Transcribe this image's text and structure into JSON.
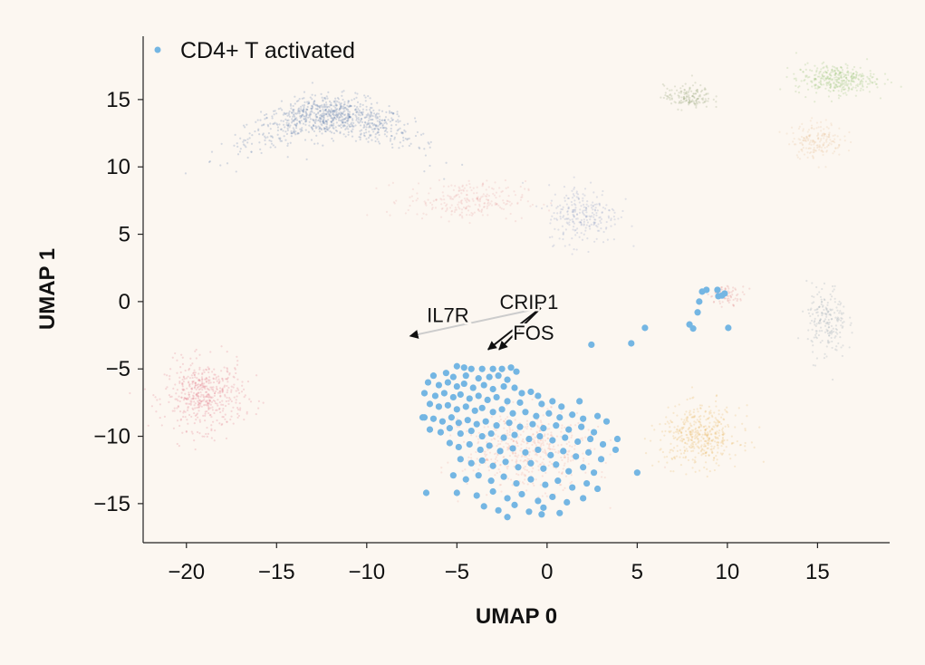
{
  "chart_data": {
    "type": "scatter",
    "title": "",
    "xlabel": "UMAP 0",
    "ylabel": "UMAP 1",
    "xlim": [
      -22.4,
      19.0
    ],
    "ylim": [
      -17.9,
      19.7
    ],
    "xticks": [
      -20,
      -15,
      -10,
      -5,
      0,
      5,
      10,
      15
    ],
    "yticks": [
      -15,
      -10,
      -5,
      0,
      5,
      10,
      15
    ],
    "xtick_labels": [
      "−20",
      "−15",
      "−10",
      "−5",
      "0",
      "5",
      "10",
      "15"
    ],
    "ytick_labels": [
      "−15",
      "−10",
      "−5",
      "0",
      "5",
      "10",
      "15"
    ],
    "grid": false,
    "legend": {
      "placement": "top-left",
      "entries": [
        "CD4+ T activated"
      ]
    },
    "highlight_color": "#74b6e3",
    "background_color": "#fcf7f1",
    "series": [
      {
        "name": "CD4+ T activated",
        "color": "#74b6e3",
        "points": [
          [
            2.46,
            -3.2
          ],
          [
            4.67,
            -3.1
          ],
          [
            5.43,
            -1.95
          ],
          [
            7.9,
            -1.7
          ],
          [
            8.1,
            -2.0
          ],
          [
            8.35,
            -0.8
          ],
          [
            8.44,
            0.0
          ],
          [
            8.6,
            0.74
          ],
          [
            8.84,
            0.87
          ],
          [
            9.45,
            0.87
          ],
          [
            9.5,
            0.4
          ],
          [
            9.7,
            0.45
          ],
          [
            9.85,
            0.6
          ],
          [
            10.05,
            -1.95
          ],
          [
            -5.0,
            -4.8
          ],
          [
            -4.6,
            -4.9
          ],
          [
            -4.2,
            -5.0
          ],
          [
            -3.6,
            -5.0
          ],
          [
            -3.0,
            -5.0
          ],
          [
            -2.5,
            -5.0
          ],
          [
            -2.0,
            -4.9
          ],
          [
            -1.7,
            -5.2
          ],
          [
            -5.6,
            -5.3
          ],
          [
            -6.3,
            -5.5
          ],
          [
            -5.2,
            -5.6
          ],
          [
            -4.5,
            -5.5
          ],
          [
            -3.8,
            -5.7
          ],
          [
            -3.2,
            -5.6
          ],
          [
            -2.7,
            -5.5
          ],
          [
            -2.2,
            -5.8
          ],
          [
            -6.6,
            -6.0
          ],
          [
            -6.0,
            -6.2
          ],
          [
            -5.5,
            -6.0
          ],
          [
            -5.0,
            -6.3
          ],
          [
            -4.6,
            -6.1
          ],
          [
            -4.1,
            -6.4
          ],
          [
            -3.5,
            -6.2
          ],
          [
            -3.0,
            -6.5
          ],
          [
            -2.4,
            -6.3
          ],
          [
            -1.8,
            -6.4
          ],
          [
            -1.4,
            -6.8
          ],
          [
            -0.9,
            -6.7
          ],
          [
            -0.5,
            -7.0
          ],
          [
            -6.8,
            -6.8
          ],
          [
            -6.2,
            -7.0
          ],
          [
            -5.7,
            -6.8
          ],
          [
            -5.2,
            -7.1
          ],
          [
            -4.8,
            -6.9
          ],
          [
            -4.3,
            -7.2
          ],
          [
            -3.8,
            -7.0
          ],
          [
            -3.3,
            -7.3
          ],
          [
            -2.8,
            -7.1
          ],
          [
            -2.2,
            -7.4
          ],
          [
            -1.5,
            -7.5
          ],
          [
            -0.3,
            -7.6
          ],
          [
            0.3,
            -7.4
          ],
          [
            0.8,
            -7.8
          ],
          [
            1.8,
            -7.4
          ],
          [
            -6.5,
            -7.6
          ],
          [
            -6.0,
            -7.8
          ],
          [
            -5.5,
            -7.7
          ],
          [
            -5.0,
            -8.0
          ],
          [
            -4.5,
            -7.8
          ],
          [
            -4.0,
            -8.1
          ],
          [
            -3.6,
            -7.9
          ],
          [
            -3.0,
            -8.2
          ],
          [
            -2.5,
            -8.0
          ],
          [
            -1.9,
            -8.3
          ],
          [
            -1.2,
            -8.2
          ],
          [
            -0.6,
            -8.5
          ],
          [
            0.1,
            -8.3
          ],
          [
            0.7,
            -8.6
          ],
          [
            1.4,
            -8.4
          ],
          [
            2.0,
            -8.7
          ],
          [
            2.8,
            -8.5
          ],
          [
            3.3,
            -8.9
          ],
          [
            -6.9,
            -8.6
          ],
          [
            -6.3,
            -8.7
          ],
          [
            -5.8,
            -8.9
          ],
          [
            -5.3,
            -8.6
          ],
          [
            -4.9,
            -9.0
          ],
          [
            -4.4,
            -8.8
          ],
          [
            -3.9,
            -9.1
          ],
          [
            -3.4,
            -8.9
          ],
          [
            -2.8,
            -9.2
          ],
          [
            -2.1,
            -9.0
          ],
          [
            -1.5,
            -9.3
          ],
          [
            -0.8,
            -9.1
          ],
          [
            -0.2,
            -9.4
          ],
          [
            0.5,
            -9.2
          ],
          [
            1.2,
            -9.5
          ],
          [
            1.9,
            -9.3
          ],
          [
            2.6,
            -9.7
          ],
          [
            -6.5,
            -9.5
          ],
          [
            -5.9,
            -9.7
          ],
          [
            -5.4,
            -9.4
          ],
          [
            -4.8,
            -9.8
          ],
          [
            -4.2,
            -9.6
          ],
          [
            -3.6,
            -10.0
          ],
          [
            -3.1,
            -9.8
          ],
          [
            -2.4,
            -10.1
          ],
          [
            -1.8,
            -9.9
          ],
          [
            -1.0,
            -10.2
          ],
          [
            -0.4,
            -10.0
          ],
          [
            0.3,
            -10.3
          ],
          [
            1.0,
            -10.1
          ],
          [
            1.7,
            -10.4
          ],
          [
            2.4,
            -10.2
          ],
          [
            3.1,
            -10.6
          ],
          [
            3.9,
            -10.2
          ],
          [
            -5.4,
            -10.5
          ],
          [
            -4.9,
            -10.8
          ],
          [
            -4.3,
            -10.6
          ],
          [
            -3.7,
            -11.0
          ],
          [
            -3.2,
            -10.7
          ],
          [
            -2.6,
            -11.1
          ],
          [
            -1.9,
            -10.9
          ],
          [
            -1.2,
            -11.2
          ],
          [
            -0.5,
            -11.0
          ],
          [
            0.2,
            -11.4
          ],
          [
            0.9,
            -11.1
          ],
          [
            1.6,
            -11.5
          ],
          [
            2.3,
            -11.2
          ],
          [
            3.0,
            -11.7
          ],
          [
            3.8,
            -11.0
          ],
          [
            -4.8,
            -11.7
          ],
          [
            -4.2,
            -12.0
          ],
          [
            -3.6,
            -11.8
          ],
          [
            -3.0,
            -12.2
          ],
          [
            -2.3,
            -11.9
          ],
          [
            -1.6,
            -12.3
          ],
          [
            -0.9,
            -12.0
          ],
          [
            -0.2,
            -12.4
          ],
          [
            0.5,
            -12.1
          ],
          [
            1.2,
            -12.6
          ],
          [
            2.0,
            -12.3
          ],
          [
            2.6,
            -12.7
          ],
          [
            5.0,
            -12.7
          ],
          [
            -5.2,
            -12.9
          ],
          [
            -4.5,
            -13.2
          ],
          [
            -3.8,
            -12.9
          ],
          [
            -3.1,
            -13.3
          ],
          [
            -2.4,
            -13.0
          ],
          [
            -1.7,
            -13.5
          ],
          [
            -0.9,
            -13.2
          ],
          [
            -0.1,
            -13.6
          ],
          [
            0.6,
            -13.3
          ],
          [
            1.4,
            -13.8
          ],
          [
            2.2,
            -13.5
          ],
          [
            2.8,
            -13.9
          ],
          [
            -5.0,
            -14.2
          ],
          [
            -3.9,
            -14.4
          ],
          [
            -3.0,
            -14.1
          ],
          [
            -2.2,
            -14.6
          ],
          [
            -1.4,
            -14.3
          ],
          [
            -0.5,
            -14.8
          ],
          [
            0.3,
            -14.5
          ],
          [
            1.1,
            -14.9
          ],
          [
            2.0,
            -14.6
          ],
          [
            -3.5,
            -15.2
          ],
          [
            -2.7,
            -15.5
          ],
          [
            -1.8,
            -15.1
          ],
          [
            -1.0,
            -15.6
          ],
          [
            -0.2,
            -15.3
          ],
          [
            0.7,
            -15.7
          ],
          [
            -0.3,
            -15.8
          ],
          [
            -2.2,
            -16.0
          ],
          [
            -6.7,
            -14.2
          ],
          [
            -6.8,
            -8.6
          ]
        ]
      }
    ],
    "background_clusters": [
      {
        "color": "#4a6fa5",
        "center": [
          -12,
          12.8
        ],
        "spread": [
          4.2,
          1.4
        ],
        "count": 900,
        "arc": true
      },
      {
        "color": "#e06a7a",
        "center": [
          -19,
          -7
        ],
        "spread": [
          2.0,
          2.3
        ],
        "count": 500
      },
      {
        "color": "#e8a0a0",
        "center": [
          -4.5,
          7.5
        ],
        "spread": [
          3.0,
          1.3
        ],
        "count": 250
      },
      {
        "color": "#8090c0",
        "center": [
          2.0,
          6.5
        ],
        "spread": [
          1.8,
          2.0
        ],
        "count": 250
      },
      {
        "color": "#8bc06a",
        "center": [
          16,
          16.5
        ],
        "spread": [
          2.0,
          1.0
        ],
        "count": 350
      },
      {
        "color": "#8a9a6a",
        "center": [
          7.8,
          15.2
        ],
        "spread": [
          1.2,
          0.8
        ],
        "count": 150
      },
      {
        "color": "#e8c090",
        "center": [
          15,
          12
        ],
        "spread": [
          1.3,
          1.2
        ],
        "count": 180
      },
      {
        "color": "#8a9aaa",
        "center": [
          15.5,
          -1.5
        ],
        "spread": [
          1.0,
          2.5
        ],
        "count": 200
      },
      {
        "color": "#e8b050",
        "center": [
          8.5,
          -10
        ],
        "spread": [
          2.0,
          2.0
        ],
        "count": 450
      },
      {
        "color": "#f0a090",
        "center": [
          -1.0,
          -11
        ],
        "spread": [
          3.2,
          2.6
        ],
        "count": 500
      },
      {
        "color": "#e08080",
        "center": [
          10.0,
          0.5
        ],
        "spread": [
          0.9,
          0.6
        ],
        "count": 80
      }
    ],
    "annotations": [
      {
        "text": "IL7R",
        "arrow_from": [
          -0.35,
          -0.47
        ],
        "arrow_to": [
          -7.6,
          -2.56
        ],
        "color": "#cccccc",
        "text_at": [
          -5.5,
          -1.0
        ]
      },
      {
        "text": "CRIP1",
        "arrow_from": [
          -0.35,
          -0.47
        ],
        "arrow_to": [
          -3.27,
          -3.56
        ],
        "color": "#111111",
        "text_at": [
          -1.0,
          0.0
        ]
      },
      {
        "text": "FOS",
        "arrow_from": [
          -0.35,
          -0.47
        ],
        "arrow_to": [
          -2.66,
          -3.56
        ],
        "color": "#111111",
        "text_at": [
          -0.75,
          -2.3
        ]
      }
    ]
  }
}
